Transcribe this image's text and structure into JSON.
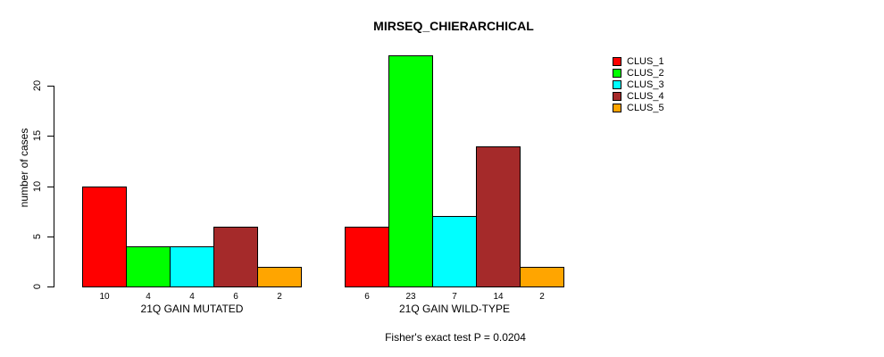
{
  "title": "MIRSEQ_CHIERARCHICAL",
  "footer": "Fisher's exact test P = 0.0204",
  "chart_data": {
    "type": "bar",
    "title": "MIRSEQ_CHIERARCHICAL",
    "ylabel": "number of cases",
    "xlabel": "",
    "ylim": [
      0,
      23
    ],
    "yticks": [
      0,
      5,
      10,
      15,
      20
    ],
    "grid": false,
    "legend_position": "right-outside",
    "categories": [
      "21Q GAIN MUTATED",
      "21Q GAIN WILD-TYPE"
    ],
    "series": [
      {
        "name": "CLUS_1",
        "color": "#FF0000",
        "values": [
          10,
          6
        ]
      },
      {
        "name": "CLUS_2",
        "color": "#00FF00",
        "values": [
          4,
          23
        ]
      },
      {
        "name": "CLUS_3",
        "color": "#00FFFF",
        "values": [
          4,
          7
        ]
      },
      {
        "name": "CLUS_4",
        "color": "#A52A2A",
        "values": [
          6,
          14
        ]
      },
      {
        "name": "CLUS_5",
        "color": "#FFA500",
        "values": [
          2,
          2
        ]
      }
    ],
    "bar_value_labels": true,
    "annotation": "Fisher's exact test P = 0.0204"
  }
}
